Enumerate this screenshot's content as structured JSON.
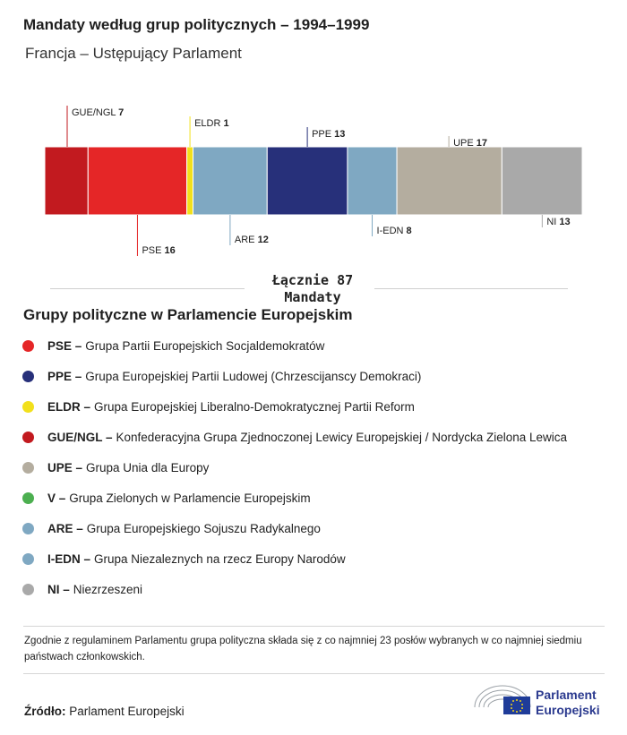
{
  "title": "Mandaty według grup politycznych – 1994–1999",
  "subtitle": "Francja – Ustępujący Parlament",
  "chart_data": {
    "type": "bar",
    "stacked": true,
    "orientation": "horizontal",
    "categories": [
      "GUE/NGL",
      "PSE",
      "ELDR",
      "ARE",
      "PPE",
      "I-EDN",
      "UPE",
      "NI"
    ],
    "values": [
      7,
      16,
      1,
      12,
      13,
      8,
      17,
      13
    ],
    "colors": [
      "#c21a1f",
      "#e52627",
      "#f2e01c",
      "#7fa8c2",
      "#27307a",
      "#7fa8c2",
      "#b4ad9f",
      "#a9a9a9"
    ],
    "label_side": [
      "top",
      "bottom",
      "top",
      "bottom",
      "top",
      "bottom",
      "top",
      "bottom"
    ],
    "total": 87
  },
  "total": {
    "line1": "Łącznie 87",
    "line2": "Mandaty"
  },
  "legend_title": "Grupy polityczne w Parlamencie Europejskim",
  "legend": [
    {
      "abbr": "PSE –",
      "text": "Grupa Partii Europejskich Socjaldemokratów",
      "color": "#e52627"
    },
    {
      "abbr": "PPE –",
      "text": "Grupa Europejskiej Partii Ludowej (Chrzescijanscy Demokraci)",
      "color": "#27307a"
    },
    {
      "abbr": "ELDR –",
      "text": "Grupa Europejskiej Liberalno-Demokratycznej Partii Reform",
      "color": "#f2e01c"
    },
    {
      "abbr": "GUE/NGL –",
      "text": "Konfederacyjna Grupa Zjednoczonej Lewicy Europejskiej / Nordycka Zielona Lewica",
      "color": "#c21a1f"
    },
    {
      "abbr": "UPE –",
      "text": "Grupa Unia dla Europy",
      "color": "#b4ad9f"
    },
    {
      "abbr": "V –",
      "text": "Grupa Zielonych w Parlamencie Europejskim",
      "color": "#4caf50"
    },
    {
      "abbr": "ARE –",
      "text": "Grupa Europejskiego Sojuszu Radykalnego",
      "color": "#7fa8c2"
    },
    {
      "abbr": "I-EDN –",
      "text": "Grupa Niezaleznych na rzecz Europy Narodów",
      "color": "#7fa8c2"
    },
    {
      "abbr": "NI –",
      "text": "Niezrzeszeni",
      "color": "#a9a9a9"
    }
  ],
  "note": "Zgodnie z regulaminem Parlamentu grupa polityczna składa się z co najmniej 23 posłów wybranych w co najmniej siedmiu państwach członkowskich.",
  "source": {
    "label": "Źródło:",
    "value": "Parlament Europejski"
  },
  "logo": {
    "line1": "Parlament",
    "line2": "Europejski"
  }
}
